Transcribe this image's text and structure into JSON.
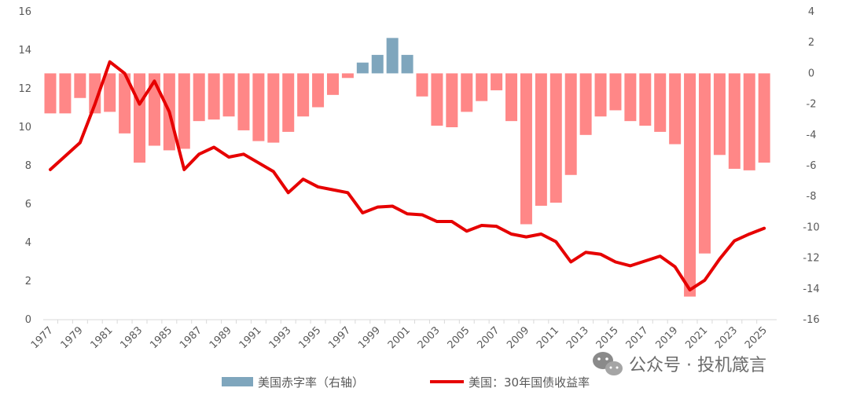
{
  "chart_data": {
    "type": "bar+line",
    "title": "",
    "years": [
      1977,
      1978,
      1979,
      1980,
      1981,
      1982,
      1983,
      1984,
      1985,
      1986,
      1987,
      1988,
      1989,
      1990,
      1991,
      1992,
      1993,
      1994,
      1995,
      1996,
      1997,
      1998,
      1999,
      2000,
      2001,
      2002,
      2003,
      2004,
      2005,
      2006,
      2007,
      2008,
      2009,
      2010,
      2011,
      2012,
      2013,
      2014,
      2015,
      2016,
      2017,
      2018,
      2019,
      2020,
      2021,
      2022,
      2023,
      2024,
      2025
    ],
    "x_tick_labels": [
      "1977",
      "1979",
      "1981",
      "1983",
      "1985",
      "1987",
      "1989",
      "1991",
      "1993",
      "1995",
      "1997",
      "1999",
      "2001",
      "2003",
      "2005",
      "2007",
      "2009",
      "2011",
      "2013",
      "2015",
      "2017",
      "2019",
      "2021",
      "2023",
      "2025"
    ],
    "left_axis": {
      "min": 0,
      "max": 16,
      "ticks": [
        0,
        2,
        4,
        6,
        8,
        10,
        12,
        14,
        16
      ]
    },
    "right_axis": {
      "min": -16,
      "max": 4,
      "ticks": [
        4,
        2,
        0,
        -2,
        -4,
        -6,
        -8,
        -10,
        -12,
        -14,
        -16
      ]
    },
    "series": [
      {
        "name": "美国赤字率（右轴）",
        "type": "bar",
        "axis": "right",
        "color_negative": "#ff8787",
        "color_positive": "#7fa6bd",
        "values": [
          -2.6,
          -2.6,
          -1.6,
          -2.6,
          -2.5,
          -3.9,
          -5.8,
          -4.7,
          -5.0,
          -4.9,
          -3.1,
          -3.0,
          -2.8,
          -3.7,
          -4.4,
          -4.5,
          -3.8,
          -2.8,
          -2.2,
          -1.4,
          -0.3,
          0.7,
          1.2,
          2.3,
          1.2,
          -1.5,
          -3.4,
          -3.5,
          -2.5,
          -1.8,
          -1.1,
          -3.1,
          -9.8,
          -8.6,
          -8.4,
          -6.6,
          -4.0,
          -2.8,
          -2.4,
          -3.1,
          -3.4,
          -3.8,
          -4.6,
          -14.5,
          -11.7,
          -5.3,
          -6.2,
          -6.3,
          -5.8
        ]
      },
      {
        "name": "美国：30年国债收益率",
        "type": "line",
        "axis": "left",
        "color": "#e60000",
        "values": [
          7.8,
          8.5,
          9.2,
          11.2,
          13.4,
          12.8,
          11.2,
          12.4,
          10.8,
          7.8,
          8.6,
          8.96,
          8.45,
          8.6,
          8.15,
          7.7,
          6.6,
          7.3,
          6.9,
          6.75,
          6.6,
          5.55,
          5.85,
          5.9,
          5.5,
          5.45,
          5.1,
          5.1,
          4.6,
          4.9,
          4.85,
          4.45,
          4.3,
          4.45,
          4.05,
          3.0,
          3.5,
          3.4,
          3.0,
          2.8,
          3.05,
          3.3,
          2.75,
          1.55,
          2.05,
          3.15,
          4.1,
          4.45,
          4.75
        ]
      }
    ],
    "legend": {
      "placement": "bottom"
    },
    "grid": false
  },
  "watermark": {
    "text": "公众号 · 投机箴言",
    "icon": "wechat-icon"
  }
}
